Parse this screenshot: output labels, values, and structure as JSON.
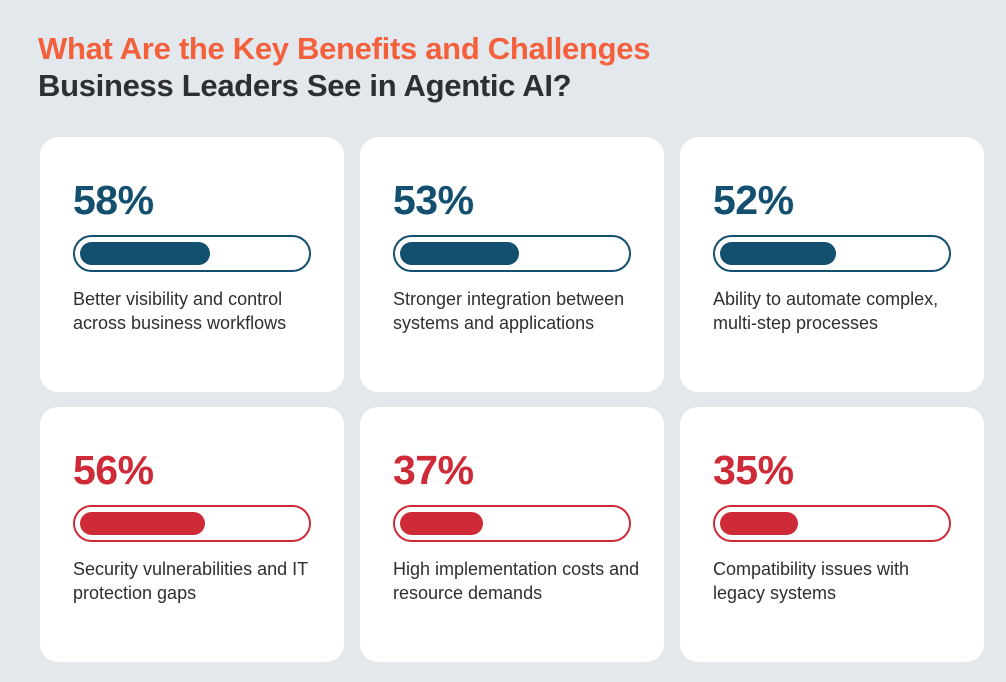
{
  "title": {
    "line1": "What Are the Key Benefits and Challenges",
    "line2": "Business Leaders See in Agentic AI?"
  },
  "colors": {
    "benefit": "#134f6f",
    "challenge": "#cf2a37",
    "title_accent": "#f45f3c",
    "title_dark": "#2d2f33",
    "background": "#e2e8ec"
  },
  "chart_data": {
    "type": "bar",
    "categories": [
      "Better visibility and control across business workflows",
      "Stronger integration between systems and applications",
      "Ability to automate complex, multi-step processes",
      "Security vulnerabilities and IT protection gaps",
      "High implementation costs and resource demands",
      "Compatibility issues with legacy systems"
    ],
    "values": [
      58,
      53,
      52,
      56,
      37,
      35
    ],
    "labels": [
      "58%",
      "53%",
      "52%",
      "56%",
      "37%",
      "35%"
    ],
    "groups": [
      "benefit",
      "benefit",
      "benefit",
      "challenge",
      "challenge",
      "challenge"
    ],
    "ylim": [
      0,
      100
    ],
    "title": "What Are the Key Benefits and Challenges Business Leaders See in Agentic AI?"
  }
}
